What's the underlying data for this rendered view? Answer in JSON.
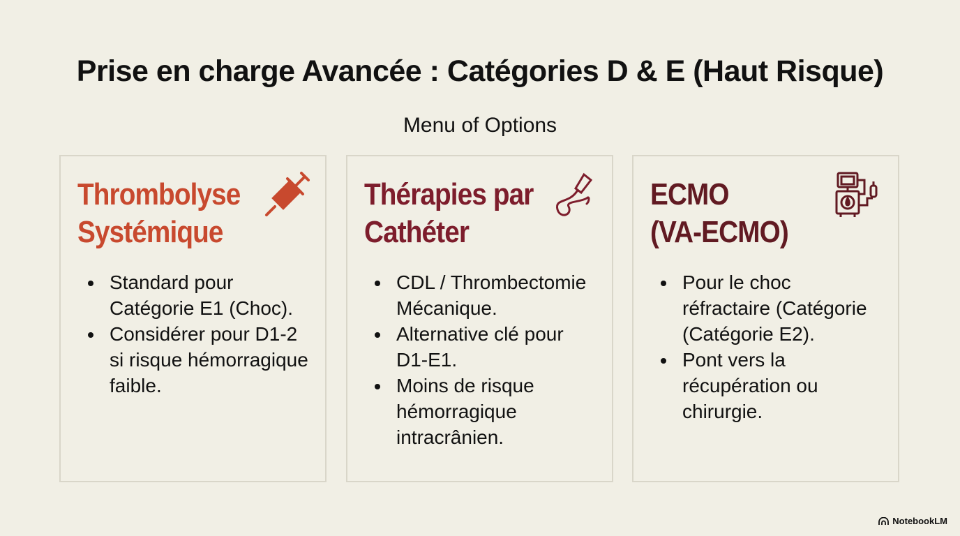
{
  "title": "Prise en charge Avancée : Catégories D & E (Haut Risque)",
  "subtitle": "Menu of Options",
  "colors": {
    "background": "#f1efe5",
    "card_border": "#d9d6c9",
    "thrombolyse": "#c8492e",
    "catheter": "#7d1d2c",
    "ecmo": "#611a22"
  },
  "cards": [
    {
      "title_line1": "Thrombolyse",
      "title_line2": "Systémique",
      "icon": "syringe-icon",
      "bullets": [
        "Standard pour Catégorie E1 (Choc).",
        "Considérer pour D1-2 si risque hémorragique faible."
      ]
    },
    {
      "title_line1": "Thérapies par",
      "title_line2": "Cathéter",
      "icon": "catheter-icon",
      "bullets": [
        "CDL / Thrombectomie Mécanique.",
        "Alternative clé pour D1-E1.",
        "Moins de risque hémorragique intracrânien."
      ]
    },
    {
      "title_line1": "ECMO",
      "title_line2": "(VA-ECMO)",
      "icon": "ecmo-machine-icon",
      "bullets": [
        "Pour le choc réfractaire (Catégorie (Catégorie E2).",
        "Pont vers la récupération ou chirurgie."
      ]
    }
  ],
  "brand": "NotebookLM"
}
